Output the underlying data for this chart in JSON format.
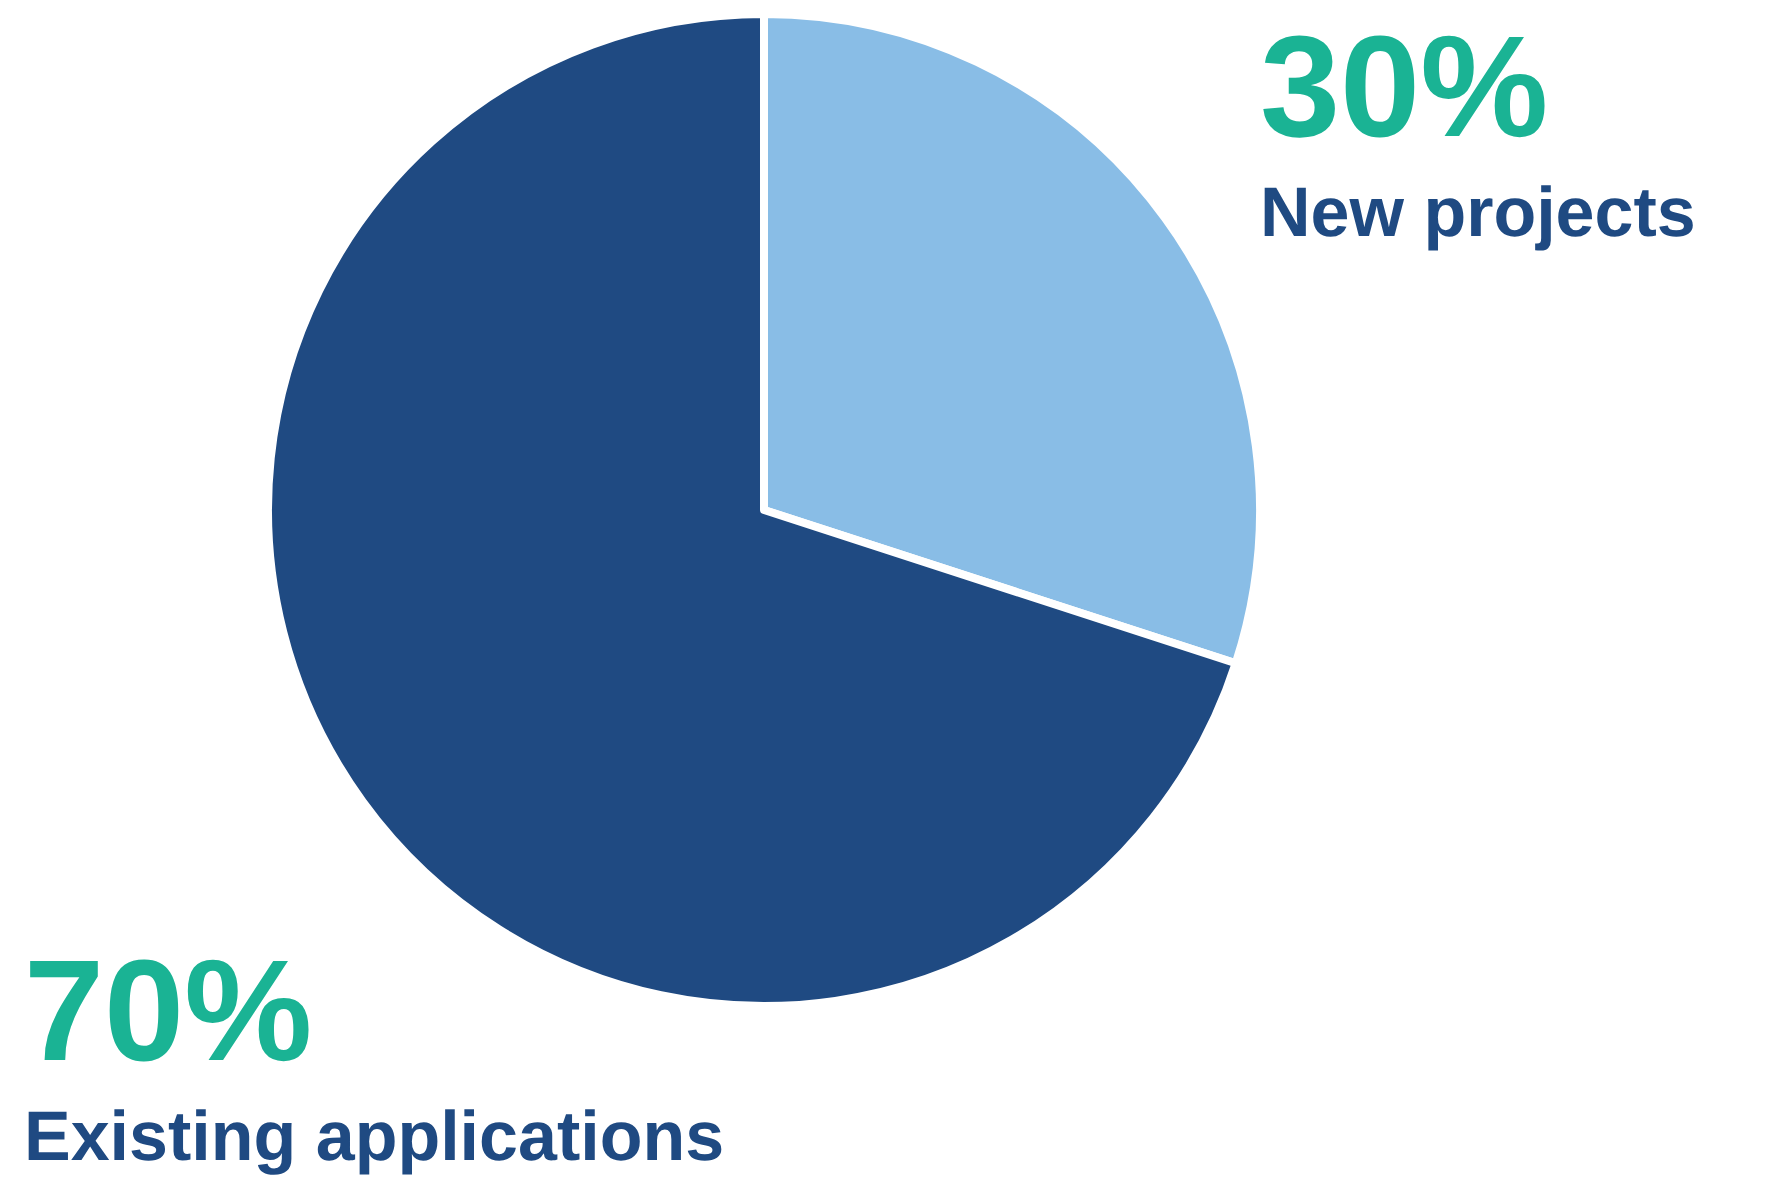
{
  "chart_data": {
    "type": "pie",
    "categories": [
      "New projects",
      "Existing applications"
    ],
    "values": [
      30,
      70
    ],
    "value_labels": [
      "30%",
      "70%"
    ],
    "colors": [
      "#89bde6",
      "#1f4a82"
    ]
  }
}
